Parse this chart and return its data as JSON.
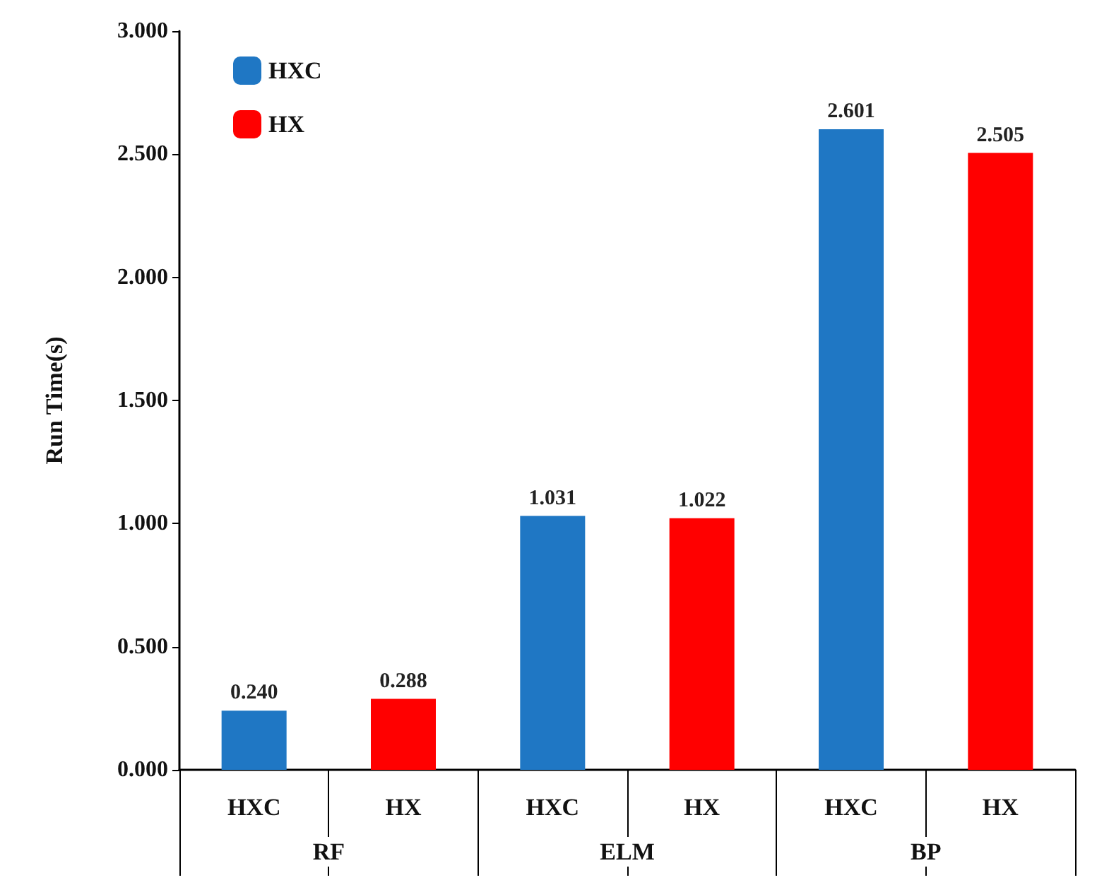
{
  "chart_data": {
    "type": "bar",
    "ylabel": "Run Time(s)",
    "categories": [
      "HXC",
      "HX",
      "HXC",
      "HX",
      "HXC",
      "HX"
    ],
    "series": [
      {
        "name": "HXC",
        "color": "#1f77c4",
        "values": [
          0.24,
          null,
          1.031,
          null,
          2.601,
          null
        ],
        "value_labels": [
          "0.240",
          null,
          "1.031",
          null,
          "2.601",
          null
        ]
      },
      {
        "name": "HX",
        "color": "#ff0000",
        "values": [
          null,
          0.288,
          null,
          1.022,
          null,
          2.505
        ],
        "value_labels": [
          null,
          "0.288",
          null,
          "1.022",
          null,
          "2.505"
        ]
      }
    ],
    "annotations": [
      "RF",
      "ELM",
      "BP"
    ],
    "ylim": [
      0,
      3
    ],
    "yticks": [
      {
        "value": 0,
        "label": "0.000"
      },
      {
        "value": 0.5,
        "label": "0.500"
      },
      {
        "value": 1,
        "label": "1.000"
      },
      {
        "value": 1.5,
        "label": "1.500"
      },
      {
        "value": 2,
        "label": "2.000"
      },
      {
        "value": 2.5,
        "label": "2.500"
      },
      {
        "value": 3,
        "label": "3.000"
      }
    ],
    "legend": "top left",
    "grid": false
  }
}
